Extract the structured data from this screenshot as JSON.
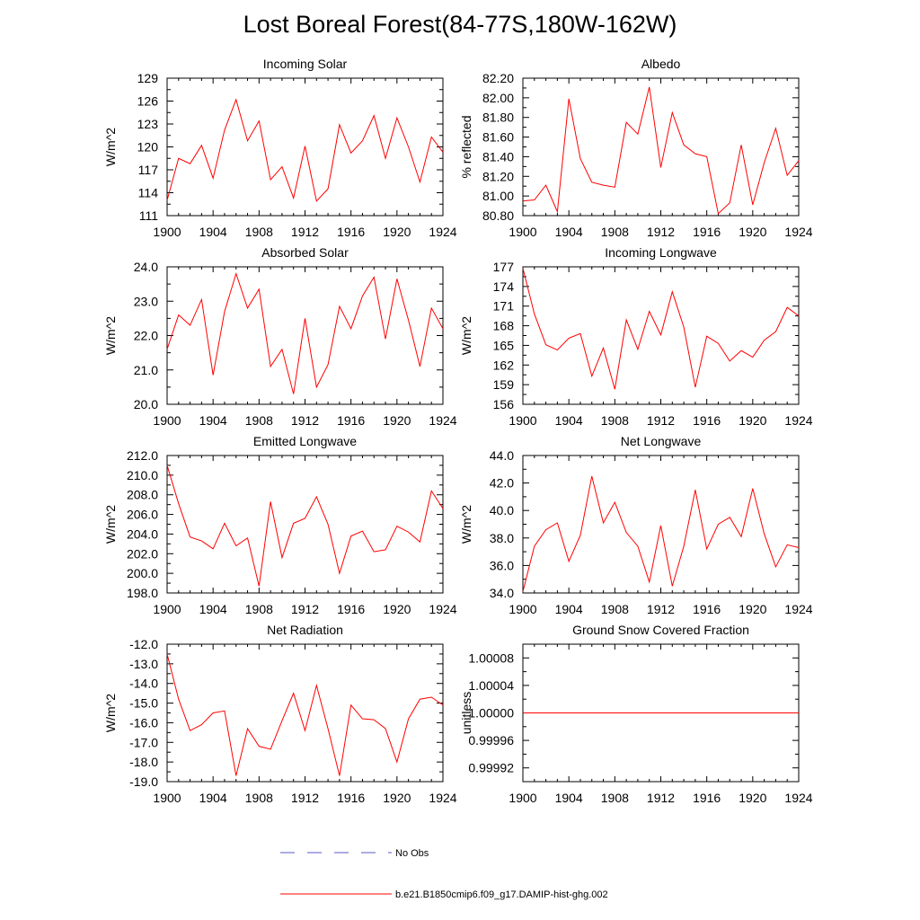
{
  "title": "Lost Boreal Forest(84-77S,180W-162W)",
  "legend": [
    {
      "label": "No Obs",
      "color": "#5a5ac8",
      "style": "dashed"
    },
    {
      "label": "b.e21.B1850cmip6.f09_g17.DAMIP-hist-ghg.002",
      "color": "#ff0000",
      "style": "solid"
    }
  ],
  "chart_data": [
    {
      "type": "line",
      "title": "Incoming Solar",
      "ylabel": "W/m^2",
      "xlabel": "",
      "xlim": [
        1900,
        1924
      ],
      "ylim": [
        111,
        129
      ],
      "xticks": [
        "1900",
        "1904",
        "1908",
        "1912",
        "1916",
        "1920",
        "1924"
      ],
      "yticks": [
        "111",
        "114",
        "117",
        "120",
        "123",
        "126",
        "129"
      ],
      "series": [
        {
          "color": "#ff0000",
          "x": [
            1900,
            1901,
            1902,
            1903,
            1904,
            1905,
            1906,
            1907,
            1908,
            1909,
            1910,
            1911,
            1912,
            1913,
            1914,
            1915,
            1916,
            1917,
            1918,
            1919,
            1920,
            1921,
            1922,
            1923,
            1924
          ],
          "values": [
            113.0,
            118.5,
            117.8,
            120.2,
            115.9,
            122.2,
            126.2,
            120.8,
            123.4,
            115.7,
            117.4,
            113.3,
            120.1,
            112.9,
            114.5,
            122.9,
            119.2,
            120.8,
            124.1,
            118.5,
            123.8,
            120.0,
            115.4,
            121.3,
            119.3
          ]
        }
      ]
    },
    {
      "type": "line",
      "title": "Albedo",
      "ylabel": "% reflected",
      "xlabel": "",
      "xlim": [
        1900,
        1924
      ],
      "ylim": [
        80.8,
        82.2
      ],
      "xticks": [
        "1900",
        "1904",
        "1908",
        "1912",
        "1916",
        "1920",
        "1924"
      ],
      "yticks": [
        "80.80",
        "81.00",
        "81.20",
        "81.40",
        "81.60",
        "81.80",
        "82.00",
        "82.20"
      ],
      "series": [
        {
          "color": "#ff0000",
          "x": [
            1900,
            1901,
            1902,
            1903,
            1904,
            1905,
            1906,
            1907,
            1908,
            1909,
            1910,
            1911,
            1912,
            1913,
            1914,
            1915,
            1916,
            1917,
            1918,
            1919,
            1920,
            1921,
            1922,
            1923,
            1924
          ],
          "values": [
            80.95,
            80.96,
            81.11,
            80.84,
            81.99,
            81.38,
            81.14,
            81.11,
            81.09,
            81.75,
            81.63,
            82.11,
            81.29,
            81.85,
            81.52,
            81.43,
            81.4,
            80.82,
            80.93,
            81.52,
            80.91,
            81.34,
            81.69,
            81.21,
            81.36
          ]
        }
      ]
    },
    {
      "type": "line",
      "title": "Absorbed Solar",
      "ylabel": "W/m^2",
      "xlabel": "",
      "xlim": [
        1900,
        1924
      ],
      "ylim": [
        20.0,
        24.0
      ],
      "xticks": [
        "1900",
        "1904",
        "1908",
        "1912",
        "1916",
        "1920",
        "1924"
      ],
      "yticks": [
        "20.0",
        "21.0",
        "22.0",
        "23.0",
        "24.0"
      ],
      "series": [
        {
          "color": "#ff0000",
          "x": [
            1900,
            1901,
            1902,
            1903,
            1904,
            1905,
            1906,
            1907,
            1908,
            1909,
            1910,
            1911,
            1912,
            1913,
            1914,
            1915,
            1916,
            1917,
            1918,
            1919,
            1920,
            1921,
            1922,
            1923,
            1924
          ],
          "values": [
            21.6,
            22.6,
            22.3,
            23.05,
            20.85,
            22.7,
            23.8,
            22.8,
            23.35,
            21.1,
            21.6,
            20.3,
            22.5,
            20.5,
            21.15,
            22.85,
            22.2,
            23.15,
            23.7,
            21.9,
            23.65,
            22.45,
            21.1,
            22.8,
            22.2
          ]
        }
      ]
    },
    {
      "type": "line",
      "title": "Incoming Longwave",
      "ylabel": "W/m^2",
      "xlabel": "",
      "xlim": [
        1900,
        1924
      ],
      "ylim": [
        156,
        177
      ],
      "xticks": [
        "1900",
        "1904",
        "1908",
        "1912",
        "1916",
        "1920",
        "1924"
      ],
      "yticks": [
        "156",
        "159",
        "162",
        "165",
        "168",
        "171",
        "174",
        "177"
      ],
      "series": [
        {
          "color": "#ff0000",
          "x": [
            1900,
            1901,
            1902,
            1903,
            1904,
            1905,
            1906,
            1907,
            1908,
            1909,
            1910,
            1911,
            1912,
            1913,
            1914,
            1915,
            1916,
            1917,
            1918,
            1919,
            1920,
            1921,
            1922,
            1923,
            1924
          ],
          "values": [
            176.8,
            169.8,
            165.1,
            164.3,
            166.1,
            166.8,
            160.3,
            164.6,
            158.3,
            168.9,
            164.4,
            170.2,
            166.6,
            173.2,
            167.8,
            158.6,
            166.4,
            165.3,
            162.6,
            164.2,
            163.2,
            165.8,
            167.1,
            170.8,
            169.5
          ]
        }
      ]
    },
    {
      "type": "line",
      "title": "Emitted Longwave",
      "ylabel": "W/m^2",
      "xlabel": "",
      "xlim": [
        1900,
        1924
      ],
      "ylim": [
        198.0,
        212.0
      ],
      "xticks": [
        "1900",
        "1904",
        "1908",
        "1912",
        "1916",
        "1920",
        "1924"
      ],
      "yticks": [
        "198.0",
        "200.0",
        "202.0",
        "204.0",
        "206.0",
        "208.0",
        "210.0",
        "212.0"
      ],
      "series": [
        {
          "color": "#ff0000",
          "x": [
            1900,
            1901,
            1902,
            1903,
            1904,
            1905,
            1906,
            1907,
            1908,
            1909,
            1910,
            1911,
            1912,
            1913,
            1914,
            1915,
            1916,
            1917,
            1918,
            1919,
            1920,
            1921,
            1922,
            1923,
            1924
          ],
          "values": [
            211.0,
            207.1,
            203.7,
            203.3,
            202.5,
            205.1,
            202.8,
            203.6,
            198.7,
            207.3,
            201.6,
            205.1,
            205.6,
            207.8,
            205.0,
            200.0,
            203.8,
            204.3,
            202.2,
            202.4,
            204.8,
            204.2,
            203.2,
            208.4,
            206.6
          ]
        }
      ]
    },
    {
      "type": "line",
      "title": "Net Longwave",
      "ylabel": "W/m^2",
      "xlabel": "",
      "xlim": [
        1900,
        1924
      ],
      "ylim": [
        34.0,
        44.0
      ],
      "xticks": [
        "1900",
        "1904",
        "1908",
        "1912",
        "1916",
        "1920",
        "1924"
      ],
      "yticks": [
        "34.0",
        "36.0",
        "38.0",
        "40.0",
        "42.0",
        "44.0"
      ],
      "series": [
        {
          "color": "#ff0000",
          "x": [
            1900,
            1901,
            1902,
            1903,
            1904,
            1905,
            1906,
            1907,
            1908,
            1909,
            1910,
            1911,
            1912,
            1913,
            1914,
            1915,
            1916,
            1917,
            1918,
            1919,
            1920,
            1921,
            1922,
            1923,
            1924
          ],
          "values": [
            34.1,
            37.4,
            38.6,
            39.1,
            36.3,
            38.2,
            42.5,
            39.1,
            40.6,
            38.4,
            37.4,
            34.8,
            38.9,
            34.5,
            37.4,
            41.5,
            37.2,
            39.0,
            39.5,
            38.1,
            41.6,
            38.3,
            35.9,
            37.5,
            37.3
          ]
        }
      ]
    },
    {
      "type": "line",
      "title": "Net Radiation",
      "ylabel": "W/m^2",
      "xlabel": "",
      "xlim": [
        1900,
        1924
      ],
      "ylim": [
        -19.0,
        -12.0
      ],
      "xticks": [
        "1900",
        "1904",
        "1908",
        "1912",
        "1916",
        "1920",
        "1924"
      ],
      "yticks": [
        "-19.0",
        "-18.0",
        "-17.0",
        "-16.0",
        "-15.0",
        "-14.0",
        "-13.0",
        "-12.0"
      ],
      "series": [
        {
          "color": "#ff0000",
          "x": [
            1900,
            1901,
            1902,
            1903,
            1904,
            1905,
            1906,
            1907,
            1908,
            1909,
            1910,
            1911,
            1912,
            1913,
            1914,
            1915,
            1916,
            1917,
            1918,
            1919,
            1920,
            1921,
            1922,
            1923,
            1924
          ],
          "values": [
            -12.5,
            -14.8,
            -16.4,
            -16.1,
            -15.5,
            -15.4,
            -18.7,
            -16.3,
            -17.2,
            -17.35,
            -15.9,
            -14.5,
            -16.4,
            -14.1,
            -16.3,
            -18.7,
            -15.1,
            -15.8,
            -15.85,
            -16.3,
            -18.0,
            -15.8,
            -14.8,
            -14.7,
            -15.1
          ]
        }
      ]
    },
    {
      "type": "line",
      "title": "Ground Snow Covered Fraction",
      "ylabel": "unitless",
      "xlabel": "",
      "xlim": [
        1900,
        1924
      ],
      "ylim": [
        0.9999,
        1.0001
      ],
      "xticks": [
        "1900",
        "1904",
        "1908",
        "1912",
        "1916",
        "1920",
        "1924"
      ],
      "yticks": [
        "0.99992",
        "0.99996",
        "1.00000",
        "1.00004",
        "1.00008"
      ],
      "ytick_values": [
        0.99992,
        0.99996,
        1.0,
        1.00004,
        1.00008
      ],
      "series": [
        {
          "color": "#ff0000",
          "x": [
            1900,
            1924
          ],
          "values": [
            1.0,
            1.0
          ]
        }
      ]
    }
  ]
}
